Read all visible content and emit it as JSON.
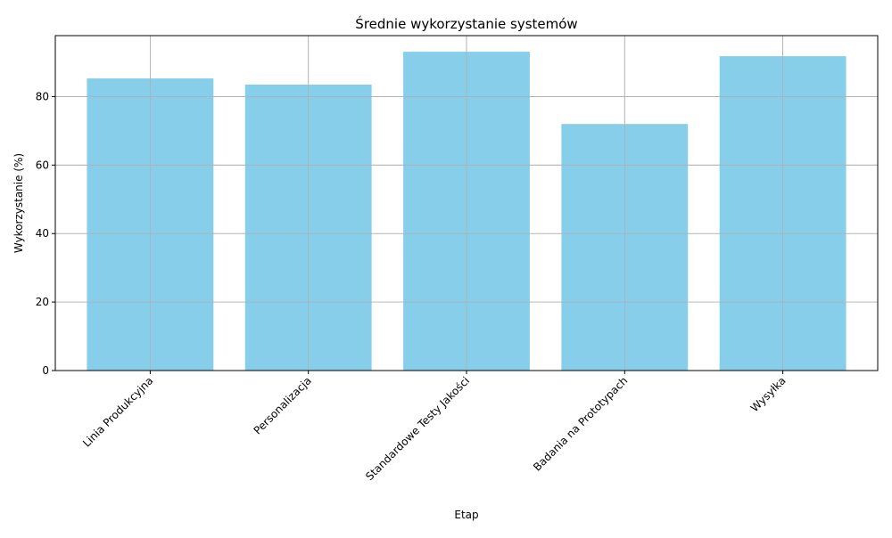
{
  "chart_data": {
    "type": "bar",
    "title": "Średnie wykorzystanie systemów",
    "xlabel": "Etap",
    "ylabel": "Wykorzystanie (%)",
    "categories": [
      "Linia Produkcyjna",
      "Personalizacja",
      "Standardowe Testy Jakości",
      "Badania na Prototypach",
      "Wysyłka"
    ],
    "values": [
      85.3,
      83.5,
      93.1,
      72.0,
      91.8
    ],
    "ylim": [
      0,
      97.8
    ],
    "yticks": [
      0,
      20,
      40,
      60,
      80
    ],
    "grid": true,
    "bar_color": "#87ceeb",
    "xtick_rotation": 45
  }
}
